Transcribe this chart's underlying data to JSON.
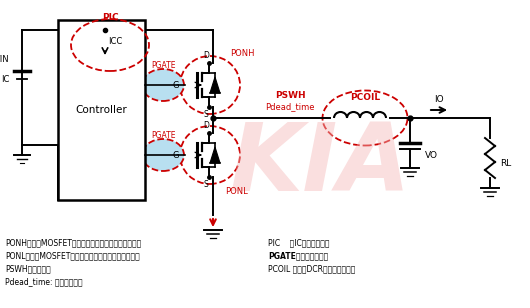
{
  "bg_color": "#ffffff",
  "watermark_text": "KIA",
  "watermark_color": "#f5b8b8",
  "watermark_alpha": 0.45,
  "legend_lines": [
    {
      "label": "PONH：高边MOSFET导通时的导通电阻带来的传导损耗",
      "bold": false
    },
    {
      "label": "PONL：低边MOSFET导通时的导通电阻带来的传导损耗",
      "bold": false
    },
    {
      "label": "PSWH：开关损耗",
      "bold": false
    },
    {
      "label": "Pdead_time: 死区时间损耗",
      "bold": false
    }
  ],
  "legend_lines_right": [
    {
      "label": "PIC    ：IC自身功率损耗",
      "bold": false
    },
    {
      "label": "PGATE：栅极电荷损耗",
      "bold": true
    },
    {
      "label": "PCOIL ：电感DCR带来的传导损耗",
      "bold": false
    }
  ],
  "circle_color": "#cc0000",
  "circle_fill": "#b8dff0",
  "label_color": "#cc0000",
  "component_color": "#000000",
  "wire_color": "#000000"
}
